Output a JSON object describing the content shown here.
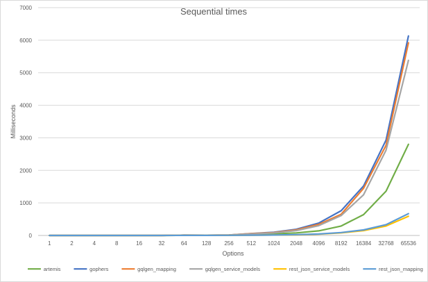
{
  "chart_data": {
    "type": "line",
    "title": "Sequential times",
    "xlabel": "Options",
    "ylabel": "Milliseconds",
    "ylim": [
      0,
      7000
    ],
    "yticks": [
      "0",
      "1000",
      "2000",
      "3000",
      "4000",
      "5000",
      "6000",
      "7000"
    ],
    "categories": [
      "1",
      "2",
      "4",
      "8",
      "16",
      "32",
      "64",
      "128",
      "256",
      "512",
      "1024",
      "2048",
      "4096",
      "8192",
      "16384",
      "32768",
      "65536"
    ],
    "grid": "horizontal",
    "legend_position": "bottom",
    "series": [
      {
        "name": "artemis",
        "color": "#70ad47",
        "values": [
          0,
          0,
          0,
          0,
          0,
          0,
          5,
          5,
          8,
          25,
          50,
          80,
          140,
          290,
          640,
          1360,
          2800
        ]
      },
      {
        "name": "gophers",
        "color": "#4472c4",
        "values": [
          0,
          0,
          0,
          0,
          0,
          0,
          10,
          8,
          15,
          60,
          100,
          190,
          380,
          760,
          1520,
          2930,
          6130
        ]
      },
      {
        "name": "gqlgen_mapping",
        "color": "#ed7d31",
        "values": [
          0,
          0,
          0,
          0,
          0,
          0,
          10,
          8,
          15,
          55,
          90,
          170,
          340,
          650,
          1450,
          2770,
          5920
        ]
      },
      {
        "name": "gqlgen_service_models",
        "color": "#a5a5a5",
        "values": [
          0,
          0,
          0,
          0,
          0,
          0,
          10,
          8,
          12,
          45,
          80,
          150,
          300,
          610,
          1250,
          2620,
          5380
        ]
      },
      {
        "name": "rest_json_service_models",
        "color": "#ffc000",
        "values": [
          0,
          0,
          0,
          0,
          0,
          0,
          3,
          3,
          5,
          8,
          12,
          20,
          40,
          80,
          150,
          290,
          590
        ]
      },
      {
        "name": "rest_json_mapping",
        "color": "#5b9bd5",
        "values": [
          0,
          0,
          0,
          0,
          0,
          0,
          3,
          3,
          5,
          8,
          12,
          25,
          45,
          90,
          170,
          330,
          670
        ]
      }
    ]
  }
}
